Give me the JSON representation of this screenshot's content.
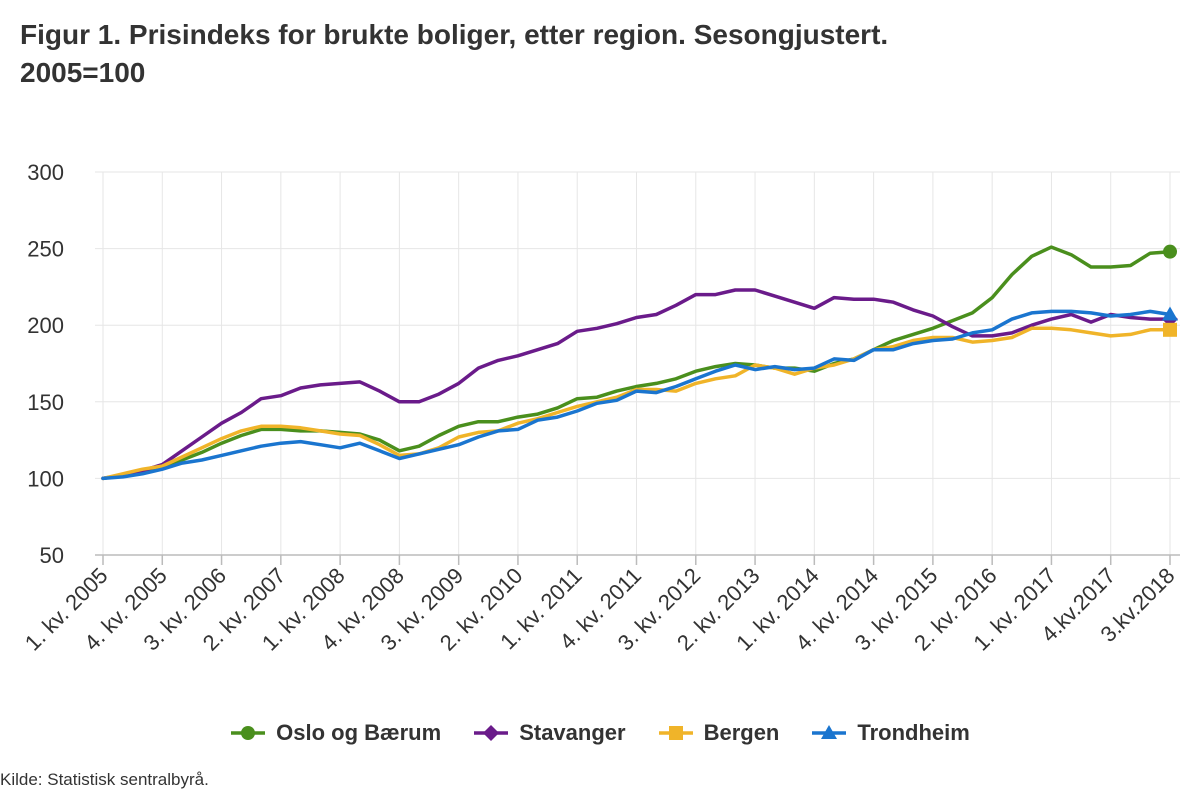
{
  "title_line1": "Figur 1. Prisindeks for brukte boliger, etter region. Sesongjustert.",
  "title_line2": "2005=100",
  "source": "Kilde: Statistisk sentralbyrå.",
  "chart_data": {
    "type": "line",
    "title": "Figur 1. Prisindeks for brukte boliger, etter region. Sesongjustert. 2005=100",
    "xlabel": "",
    "ylabel": "",
    "ylim": [
      50,
      300
    ],
    "yticks": [
      50,
      100,
      150,
      200,
      250,
      300
    ],
    "grid": true,
    "legend_position": "bottom",
    "x_tick_labels": [
      "1. kv. 2005",
      "4. kv. 2005",
      "3. kv. 2006",
      "2. kv. 2007",
      "1. kv. 2008",
      "4. kv. 2008",
      "3. kv. 2009",
      "2. kv. 2010",
      "1. kv. 2011",
      "4. kv. 2011",
      "3. kv. 2012",
      "2. kv. 2013",
      "1. kv. 2014",
      "4. kv. 2014",
      "3. kv. 2015",
      "2. kv. 2016",
      "1. kv. 2017",
      "4.kv.2017",
      "3.kv.2018"
    ],
    "x_tick_every": 3,
    "categories": [
      "1. kv. 2005",
      "2. kv. 2005",
      "3. kv. 2005",
      "4. kv. 2005",
      "1. kv. 2006",
      "2. kv. 2006",
      "3. kv. 2006",
      "4. kv. 2006",
      "1. kv. 2007",
      "2. kv. 2007",
      "3. kv. 2007",
      "4. kv. 2007",
      "1. kv. 2008",
      "2. kv. 2008",
      "3. kv. 2008",
      "4. kv. 2008",
      "1. kv. 2009",
      "2. kv. 2009",
      "3. kv. 2009",
      "4. kv. 2009",
      "1. kv. 2010",
      "2. kv. 2010",
      "3. kv. 2010",
      "4. kv. 2010",
      "1. kv. 2011",
      "2. kv. 2011",
      "3. kv. 2011",
      "4. kv. 2011",
      "1. kv. 2012",
      "2. kv. 2012",
      "3. kv. 2012",
      "4. kv. 2012",
      "1. kv. 2013",
      "2. kv. 2013",
      "3. kv. 2013",
      "4. kv. 2013",
      "1. kv. 2014",
      "2. kv. 2014",
      "3. kv. 2014",
      "4. kv. 2014",
      "1. kv. 2015",
      "2. kv. 2015",
      "3. kv. 2015",
      "4. kv. 2015",
      "1. kv. 2016",
      "2. kv. 2016",
      "3. kv. 2016",
      "4. kv. 2016",
      "1. kv. 2017",
      "2. kv. 2017",
      "3. kv. 2017",
      "4.kv.2017",
      "1. kv. 2018",
      "2. kv. 2018",
      "3.kv.2018"
    ],
    "series": [
      {
        "name": "Oslo og Bærum",
        "color": "#4a8f1d",
        "marker": "circle",
        "values": [
          100,
          102,
          105,
          108,
          112,
          117,
          123,
          128,
          132,
          132,
          131,
          131,
          130,
          129,
          125,
          118,
          121,
          128,
          134,
          137,
          137,
          140,
          142,
          146,
          152,
          153,
          157,
          160,
          162,
          165,
          170,
          173,
          175,
          174,
          172,
          172,
          170,
          175,
          178,
          184,
          190,
          194,
          198,
          203,
          208,
          218,
          233,
          245,
          251,
          246,
          238,
          238,
          239,
          247,
          248
        ]
      },
      {
        "name": "Stavanger",
        "color": "#6a1b8a",
        "marker": "diamond",
        "values": [
          100,
          102,
          105,
          109,
          118,
          127,
          136,
          143,
          152,
          154,
          159,
          161,
          162,
          163,
          157,
          150,
          150,
          155,
          162,
          172,
          177,
          180,
          184,
          188,
          196,
          198,
          201,
          205,
          207,
          213,
          220,
          220,
          223,
          223,
          219,
          215,
          211,
          218,
          217,
          217,
          215,
          210,
          206,
          199,
          193,
          193,
          195,
          200,
          204,
          207,
          202,
          207,
          205,
          204,
          204
        ]
      },
      {
        "name": "Bergen",
        "color": "#f0b429",
        "marker": "square",
        "values": [
          100,
          103,
          106,
          108,
          114,
          120,
          126,
          131,
          134,
          134,
          133,
          131,
          129,
          128,
          122,
          115,
          116,
          120,
          127,
          130,
          131,
          136,
          139,
          143,
          147,
          150,
          153,
          158,
          158,
          157,
          162,
          165,
          167,
          174,
          172,
          168,
          172,
          174,
          178,
          184,
          186,
          190,
          192,
          192,
          189,
          190,
          192,
          198,
          198,
          197,
          195,
          193,
          194,
          197,
          197
        ]
      },
      {
        "name": "Trondheim",
        "color": "#1a75cf",
        "marker": "triangle",
        "values": [
          100,
          101,
          103,
          106,
          110,
          112,
          115,
          118,
          121,
          123,
          124,
          122,
          120,
          123,
          118,
          113,
          116,
          119,
          122,
          127,
          131,
          132,
          138,
          140,
          144,
          149,
          151,
          157,
          156,
          160,
          165,
          170,
          174,
          171,
          173,
          171,
          172,
          178,
          177,
          184,
          184,
          188,
          190,
          191,
          195,
          197,
          204,
          208,
          209,
          209,
          208,
          206,
          207,
          209,
          207
        ]
      }
    ]
  },
  "legend": {
    "items": [
      {
        "label": "Oslo og Bærum",
        "color": "#4a8f1d",
        "marker": "circle"
      },
      {
        "label": "Stavanger",
        "color": "#6a1b8a",
        "marker": "diamond"
      },
      {
        "label": "Bergen",
        "color": "#f0b429",
        "marker": "square"
      },
      {
        "label": "Trondheim",
        "color": "#1a75cf",
        "marker": "triangle"
      }
    ]
  }
}
